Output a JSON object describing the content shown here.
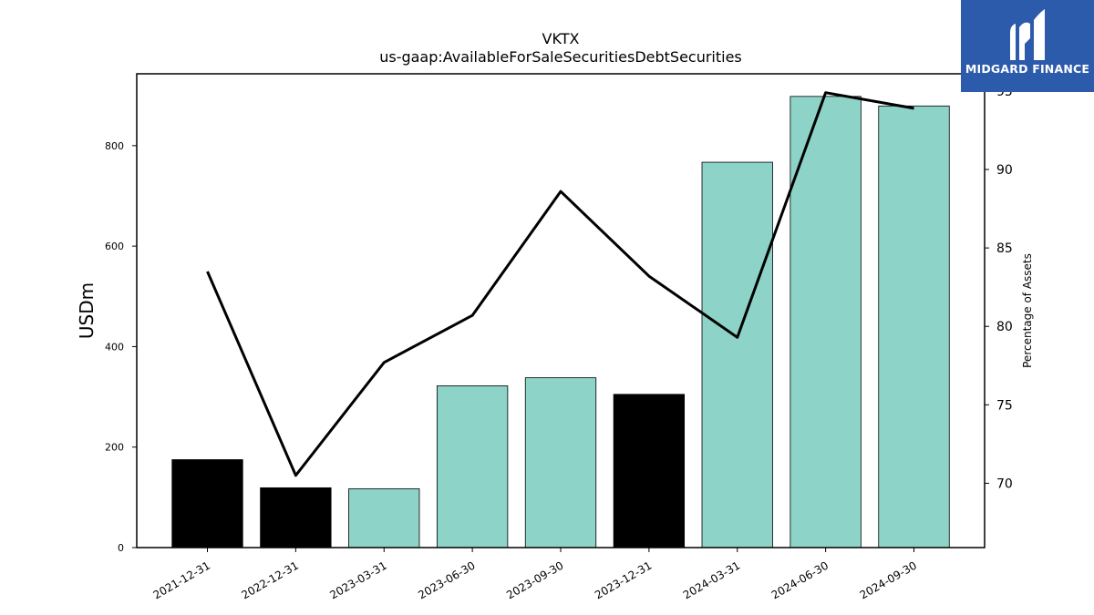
{
  "chart_data": {
    "type": "bar",
    "title": "VKTX",
    "subtitle": "us-gaap:AvailableForSaleSecuritiesDebtSecurities",
    "ylabel": "USDm",
    "y2label": "Percentage of Assets",
    "categories": [
      "2021-12-31",
      "2022-12-31",
      "2023-03-31",
      "2023-06-30",
      "2023-09-30",
      "2023-12-31",
      "2024-03-31",
      "2024-06-30",
      "2024-09-30"
    ],
    "bar_values": [
      175,
      119,
      117,
      322,
      338,
      305,
      767,
      898,
      879
    ],
    "bar_colors": [
      "#000000",
      "#000000",
      "#8dd3c7",
      "#8dd3c7",
      "#8dd3c7",
      "#000000",
      "#8dd3c7",
      "#8dd3c7",
      "#8dd3c7"
    ],
    "line_values": [
      83.5,
      70.5,
      77.7,
      80.7,
      88.6,
      83.2,
      79.3,
      94.9,
      93.9
    ],
    "line_color": "#000000",
    "ylim": [
      0,
      943
    ],
    "y2lim": [
      65.9,
      96.1
    ],
    "yticks": [
      0,
      200,
      400,
      600,
      800
    ],
    "y2ticks": [
      70,
      75,
      80,
      85,
      90,
      95
    ],
    "grid": false
  },
  "logo": {
    "text": "MIDGARD FINANCE",
    "bg": "#2d5bab"
  }
}
